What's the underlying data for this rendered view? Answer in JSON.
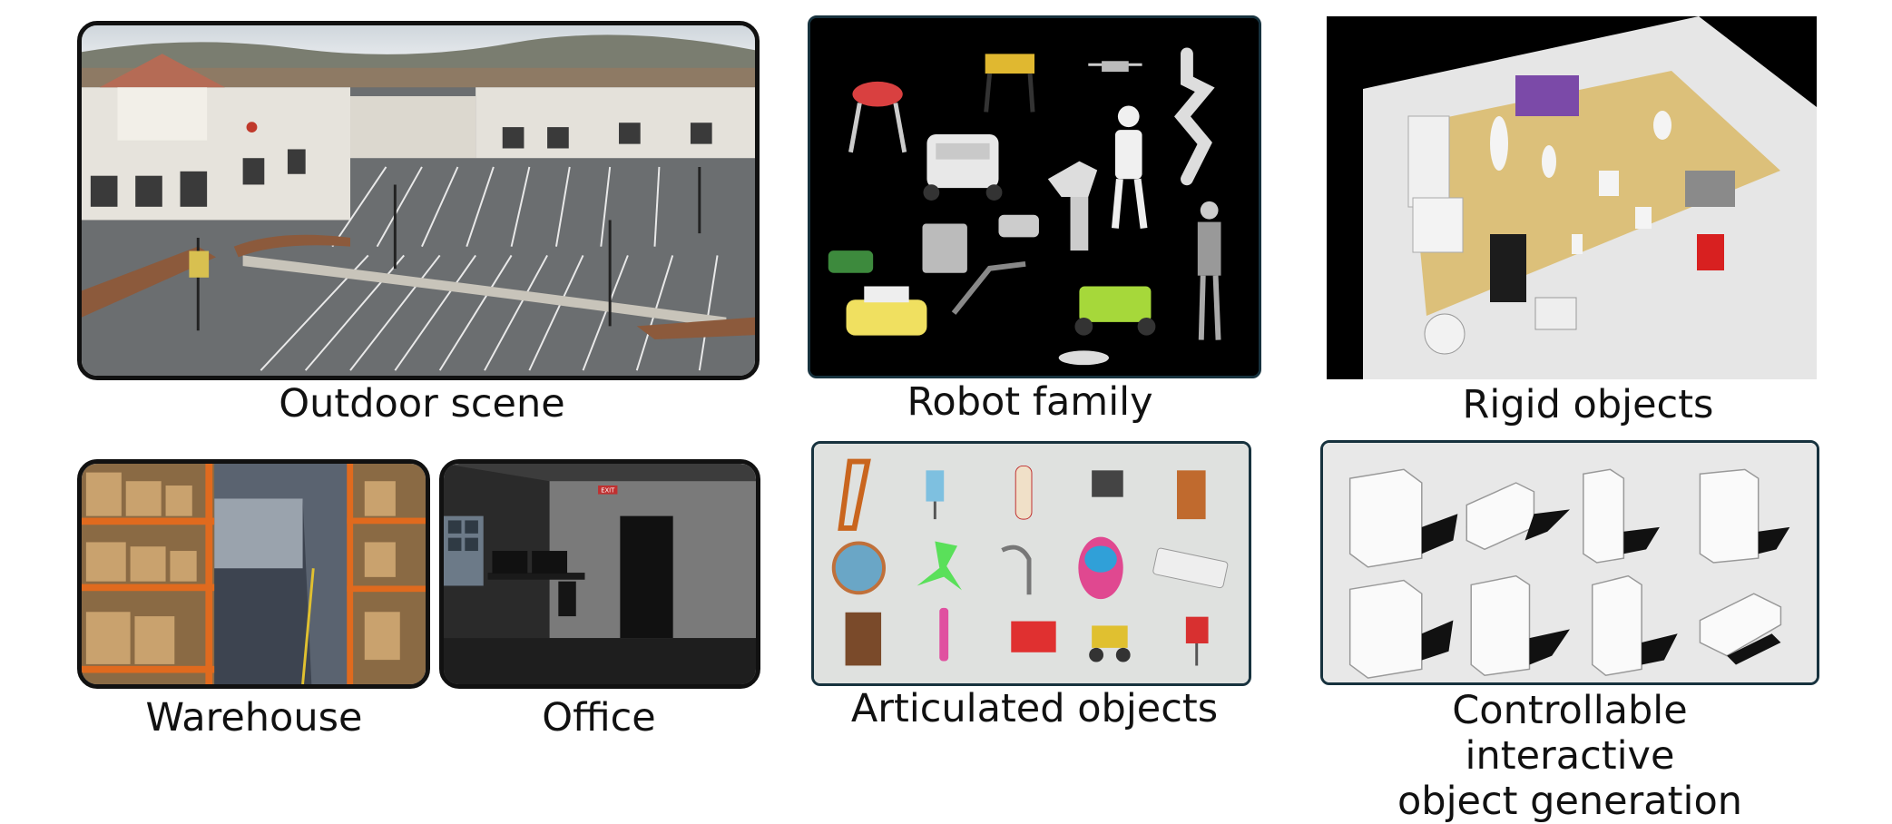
{
  "captions": {
    "outdoor": "Outdoor scene",
    "robots": "Robot family",
    "rigid": "Rigid objects",
    "warehouse": "Warehouse",
    "office": "Office",
    "articulated": "Articulated objects",
    "controllable_line1": "Controllable interactive",
    "controllable_line2": "object generation"
  },
  "signage": {
    "exit": "EXIT"
  }
}
